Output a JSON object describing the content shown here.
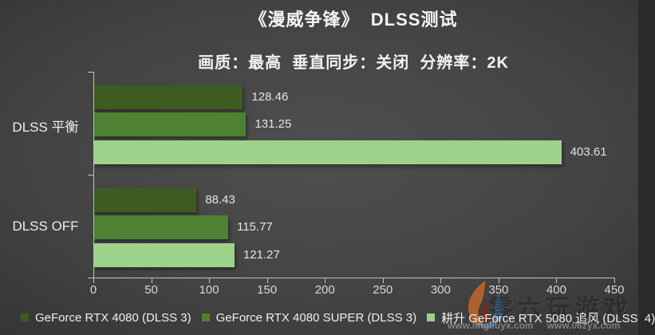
{
  "title": "《漫威争锋》  DLSS测试",
  "subtitle": "画质：最高  垂直同步：关闭  分辨率：2K",
  "chart_data": {
    "type": "bar",
    "orientation": "horizontal",
    "title": "《漫威争锋》  DLSS测试",
    "subtitle": "画质：最高  垂直同步：关闭  分辨率：2K",
    "categories": [
      "DLSS 平衡",
      "DLSS  OFF"
    ],
    "series": [
      {
        "name": "GeForce RTX 4080 (DLSS 3)",
        "color": "#3D5C22",
        "values": [
          128.46,
          88.43
        ]
      },
      {
        "name": "GeForce RTX 4080 SUPER (DLSS 3)",
        "color": "#4E8131",
        "values": [
          131.25,
          115.77
        ]
      },
      {
        "name": "耕升 GeForce RTX 5080 追风 (DLSS  4)",
        "color": "#9CD28A",
        "values": [
          403.61,
          121.27
        ]
      }
    ],
    "xlim": [
      0,
      450
    ],
    "xticks": [
      0,
      50,
      100,
      150,
      200,
      250,
      300,
      350,
      400,
      450
    ],
    "value_labels": true,
    "legend_position": "bottom",
    "grid": false,
    "background": "dark-radial-gray"
  },
  "watermark": {
    "text": "零六玩游戏",
    "urls": [
      "www.lingliuyx.com",
      "www.06zyx.com"
    ]
  },
  "colors": {
    "axis": "#c3c3c3",
    "text_primary": "#f5f5f5",
    "text_secondary": "#d8d8d8",
    "bar_dark_green": "#3D5C22",
    "bar_mid_green": "#4E8131",
    "bar_light_green": "#9CD28A"
  }
}
